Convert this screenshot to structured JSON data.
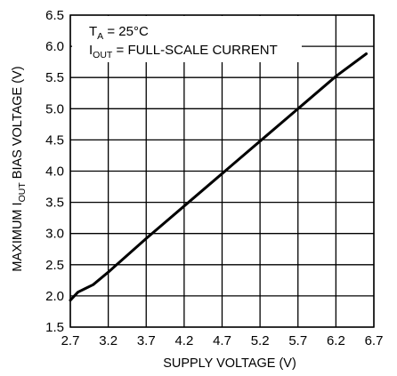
{
  "chart_data": {
    "type": "line",
    "xlabel": "SUPPLY VOLTAGE (V)",
    "ylabel": {
      "prefix": "MAXIMUM I",
      "subscript": "OUT",
      "suffix": " BIAS VOLTAGE (V)"
    },
    "xlim": [
      2.7,
      6.7
    ],
    "ylim": [
      1.5,
      6.5
    ],
    "x_ticks": [
      "2.7",
      "3.2",
      "3.7",
      "4.2",
      "4.7",
      "5.2",
      "5.7",
      "6.2",
      "6.7"
    ],
    "y_ticks": [
      "1.5",
      "2.0",
      "2.5",
      "3.0",
      "3.5",
      "4.0",
      "4.5",
      "5.0",
      "5.5",
      "6.0",
      "6.5"
    ],
    "grid": true,
    "annotations": {
      "line1": {
        "main": "T",
        "subscript": "A",
        "rest": " = 25°C"
      },
      "line2": {
        "main": "I",
        "subscript": "OUT",
        "rest": " = FULL-SCALE CURRENT"
      }
    },
    "series": [
      {
        "x": [
          2.7,
          2.8,
          2.9,
          3.0,
          3.2,
          3.7,
          4.2,
          4.7,
          5.2,
          5.7,
          6.2,
          6.6
        ],
        "y": [
          1.93,
          2.06,
          2.12,
          2.18,
          2.38,
          2.92,
          3.44,
          3.96,
          4.48,
          5.0,
          5.52,
          5.88
        ]
      }
    ]
  }
}
